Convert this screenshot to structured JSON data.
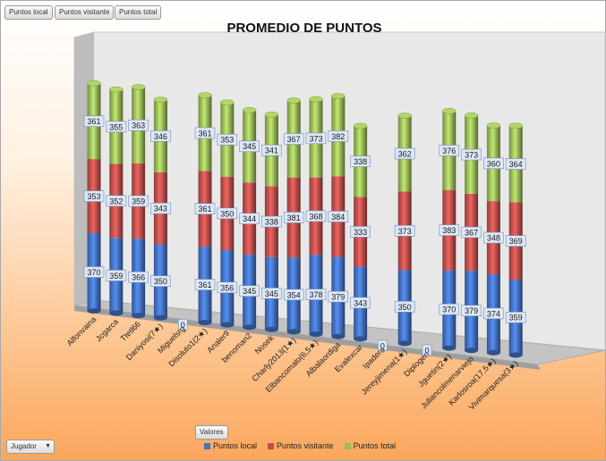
{
  "field_buttons": {
    "local": "Puntos local",
    "visitante": "Puntos visitante",
    "total": "Puntos total"
  },
  "valores_button": "Valores",
  "jugador_dropdown": "Jugador",
  "colors": {
    "local": "#4472c4",
    "visitante": "#c0504d",
    "total": "#9bbb59"
  },
  "chart_data": {
    "type": "stacked-bar-3d",
    "title": "PROMEDIO DE PUNTOS",
    "categories": [
      "Alfonvaina",
      "Jcgarca",
      "Ttetl66",
      "Daniyosi(7★)",
      "Miguelsrg",
      "Disoluto1(2★)",
      "Analer9",
      "benoman2",
      "Nosek",
      "Charly2013(1★)",
      "Elbancomalo(6,5★)",
      "Albalaordiga",
      "Evalexcar",
      "Ipadera",
      "Jereyjimena(1★)",
      "Diplogen",
      "Jguetin(2★)",
      "Juliancolmenarviejo",
      "Karlosroa(17,5★)",
      "Vivimarquesa(3★)"
    ],
    "series": [
      {
        "name": "Puntos local",
        "values": [
          370,
          359,
          366,
          350,
          0,
          361,
          356,
          345,
          345,
          354,
          378,
          379,
          343,
          0,
          350,
          0,
          370,
          379,
          374,
          359
        ]
      },
      {
        "name": "Puntos visitante",
        "values": [
          353,
          352,
          359,
          343,
          0,
          361,
          350,
          344,
          338,
          381,
          368,
          384,
          333,
          0,
          373,
          0,
          383,
          367,
          348,
          369
        ]
      },
      {
        "name": "Puntos total",
        "values": [
          361,
          355,
          363,
          346,
          0,
          361,
          353,
          345,
          341,
          367,
          373,
          382,
          338,
          0,
          362,
          0,
          376,
          373,
          360,
          364
        ]
      }
    ],
    "legend": "bottom",
    "data_labels": true
  }
}
